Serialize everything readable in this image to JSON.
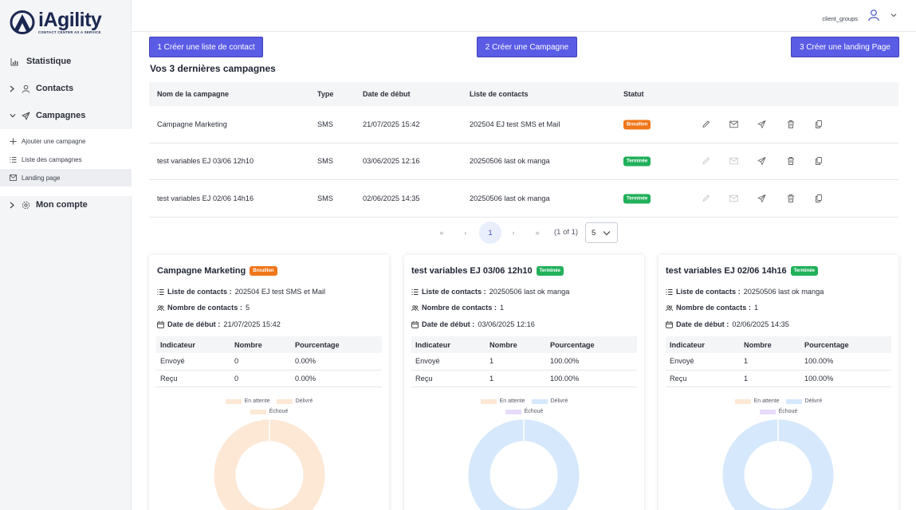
{
  "brand": {
    "name": "iAgility",
    "tagline": "CONTACT CENTER AS A SERVICE",
    "color": "#1a2750"
  },
  "sidebar": {
    "items": [
      {
        "label": "Statistique",
        "icon": "bar-chart-icon"
      },
      {
        "label": "Contacts",
        "icon": "user-icon"
      },
      {
        "label": "Campagnes",
        "icon": "send-icon"
      },
      {
        "label": "Mon compte",
        "icon": "gear-icon"
      }
    ],
    "sub_items": [
      {
        "label": "Ajouter une campagne",
        "icon": "plus-icon"
      },
      {
        "label": "Liste des campagnes",
        "icon": "list-icon"
      },
      {
        "label": "Landing page",
        "icon": "mail-icon",
        "active": true
      }
    ]
  },
  "header": {
    "user_name": "client_groups"
  },
  "actions": {
    "create_list": "1 Créer une liste de contact",
    "create_campaign": "2 Créer une Campagne",
    "create_landing": "3 Créer une landing Page",
    "accent": "#5a5ce6"
  },
  "section_title": "Vos 3 dernières campagnes",
  "table": {
    "headers": [
      "Nom de la campagne",
      "Type",
      "Date de début",
      "Liste de contacts",
      "Statut"
    ],
    "rows": [
      {
        "name": "Campagne Marketing",
        "type": "SMS",
        "date": "21/07/2025 15:42",
        "list": "202504 EJ test SMS et Mail",
        "status": "Brouillon"
      },
      {
        "name": "test variables EJ 03/06 12h10",
        "type": "SMS",
        "date": "03/06/2025 12:16",
        "list": "20250506 last ok manga",
        "status": "Terminée"
      },
      {
        "name": "test variables EJ 02/06 14h16",
        "type": "SMS",
        "date": "02/06/2025 14:35",
        "list": "20250506 last ok manga",
        "status": "Terminée"
      }
    ]
  },
  "pagination": {
    "first": "«",
    "prev": "‹",
    "current": "1",
    "next": "›",
    "last": "»",
    "info": "(1 of 1)",
    "page_size": "5"
  },
  "status_colors": {
    "Brouillon": "#f0761a",
    "Terminée": "#21b05a"
  },
  "cards": [
    {
      "title": "Campagne Marketing",
      "status": "Brouillon",
      "list_label": "Liste de contacts :",
      "list_value": "202504 EJ test SMS et Mail",
      "count_label": "Nombre de contacts :",
      "count_value": "5",
      "date_label": "Date de début :",
      "date_value": "21/07/2025 15:42",
      "headers": [
        "Indicateur",
        "Nombre",
        "Pourcentage"
      ],
      "rows": [
        [
          "Envoyé",
          "0",
          "0.00%"
        ],
        [
          "Reçu",
          "0",
          "0.00%"
        ]
      ],
      "legend": [
        "En attente",
        "Délivré",
        "Échoué"
      ],
      "donut_color": "#fde8d6"
    },
    {
      "title": "test variables EJ 03/06 12h10",
      "status": "Terminée",
      "list_label": "Liste de contacts :",
      "list_value": "20250506 last ok manga",
      "count_label": "Nombre de contacts :",
      "count_value": "1",
      "date_label": "Date de début :",
      "date_value": "03/06/2025 12:16",
      "headers": [
        "Indicateur",
        "Nombre",
        "Pourcentage"
      ],
      "rows": [
        [
          "Envoyé",
          "1",
          "100.00%"
        ],
        [
          "Reçu",
          "1",
          "100.00%"
        ]
      ],
      "legend": [
        "En attente",
        "Délivré",
        "Échoué"
      ],
      "donut_color": "#d6e8fb"
    },
    {
      "title": "test variables EJ 02/06 14h16",
      "status": "Terminée",
      "list_label": "Liste de contacts :",
      "list_value": "20250506 last ok manga",
      "count_label": "Nombre de contacts :",
      "count_value": "1",
      "date_label": "Date de début :",
      "date_value": "02/06/2025 14:35",
      "headers": [
        "Indicateur",
        "Nombre",
        "Pourcentage"
      ],
      "rows": [
        [
          "Envoyé",
          "1",
          "100.00%"
        ],
        [
          "Reçu",
          "1",
          "100.00%"
        ]
      ],
      "legend": [
        "En attente",
        "Délivré",
        "Échoué"
      ],
      "donut_color": "#d6e8fb"
    }
  ],
  "legend_colors": {
    "En attente": "#fde8d6",
    "Délivré": "#d6e8fb",
    "Échoué": "#e6dcfa"
  }
}
